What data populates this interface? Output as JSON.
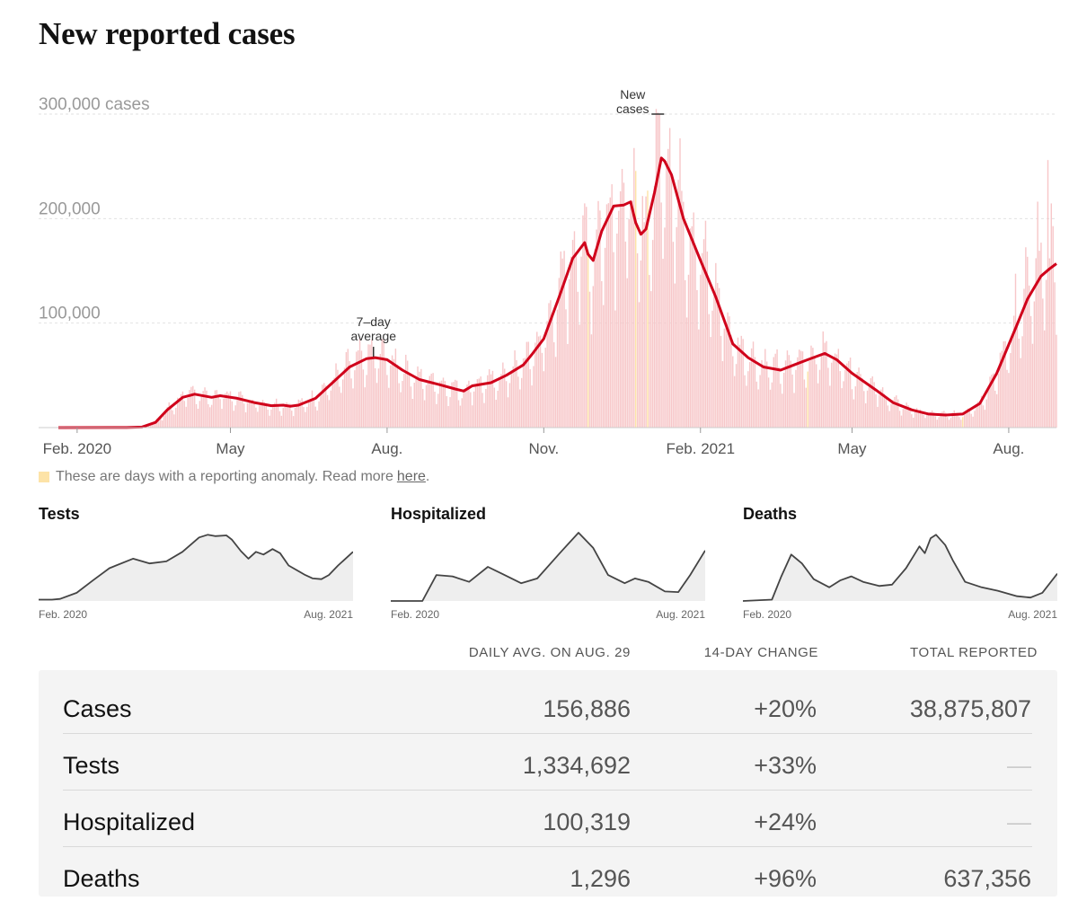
{
  "page": {
    "title": "New reported cases"
  },
  "note": {
    "text": "These are days with a reporting anomaly. Read more",
    "link": "here",
    "end": ".",
    "anomaly_color": "#fde3a7"
  },
  "chart_data": [
    {
      "type": "bar+line",
      "title": "New reported cases",
      "y_unit": "cases",
      "ylim": [
        0,
        300000
      ],
      "y_ticks": [
        100000,
        200000,
        300000
      ],
      "y_tick_labels": [
        "100,000",
        "200,000",
        "300,000 cases"
      ],
      "x_range": [
        "2020-01-21",
        "2021-08-29"
      ],
      "x_ticks": [
        {
          "date": "2020-02-01",
          "label": "Feb. 2020"
        },
        {
          "date": "2020-05-01",
          "label": "May"
        },
        {
          "date": "2020-08-01",
          "label": "Aug."
        },
        {
          "date": "2020-11-01",
          "label": "Nov."
        },
        {
          "date": "2021-02-01",
          "label": "Feb. 2021"
        },
        {
          "date": "2021-05-01",
          "label": "May"
        },
        {
          "date": "2021-08-01",
          "label": "Aug."
        }
      ],
      "annotations": [
        {
          "label": "7–day average",
          "date": "2020-07-24",
          "value": 67000
        },
        {
          "label": "New cases",
          "date": "2021-01-08",
          "value": 300000
        }
      ],
      "series": [
        {
          "name": "7–day average",
          "color": "#d0021b",
          "points": [
            [
              "2020-01-21",
              0
            ],
            [
              "2020-03-01",
              100
            ],
            [
              "2020-03-10",
              500
            ],
            [
              "2020-03-18",
              5000
            ],
            [
              "2020-03-25",
              17000
            ],
            [
              "2020-04-03",
              29000
            ],
            [
              "2020-04-10",
              32000
            ],
            [
              "2020-04-20",
              29000
            ],
            [
              "2020-04-25",
              30500
            ],
            [
              "2020-05-05",
              28000
            ],
            [
              "2020-05-15",
              24000
            ],
            [
              "2020-05-25",
              21000
            ],
            [
              "2020-06-01",
              21500
            ],
            [
              "2020-06-05",
              20500
            ],
            [
              "2020-06-10",
              21500
            ],
            [
              "2020-06-20",
              28000
            ],
            [
              "2020-06-30",
              43000
            ],
            [
              "2020-07-10",
              58000
            ],
            [
              "2020-07-20",
              66000
            ],
            [
              "2020-07-25",
              67000
            ],
            [
              "2020-08-01",
              65000
            ],
            [
              "2020-08-10",
              55000
            ],
            [
              "2020-08-20",
              46000
            ],
            [
              "2020-09-01",
              41000
            ],
            [
              "2020-09-10",
              37000
            ],
            [
              "2020-09-15",
              35000
            ],
            [
              "2020-09-20",
              40000
            ],
            [
              "2020-10-01",
              43000
            ],
            [
              "2020-10-10",
              50000
            ],
            [
              "2020-10-20",
              60000
            ],
            [
              "2020-10-25",
              70000
            ],
            [
              "2020-11-01",
              85000
            ],
            [
              "2020-11-10",
              125000
            ],
            [
              "2020-11-18",
              162000
            ],
            [
              "2020-11-25",
              177000
            ],
            [
              "2020-11-27",
              166000
            ],
            [
              "2020-11-30",
              160000
            ],
            [
              "2020-12-05",
              188000
            ],
            [
              "2020-12-12",
              212000
            ],
            [
              "2020-12-18",
              213000
            ],
            [
              "2020-12-22",
              216000
            ],
            [
              "2020-12-25",
              196000
            ],
            [
              "2020-12-28",
              185000
            ],
            [
              "2020-12-31",
              190000
            ],
            [
              "2021-01-05",
              225000
            ],
            [
              "2021-01-09",
              258000
            ],
            [
              "2021-01-11",
              255000
            ],
            [
              "2021-01-15",
              242000
            ],
            [
              "2021-01-22",
              200000
            ],
            [
              "2021-02-01",
              160000
            ],
            [
              "2021-02-10",
              125000
            ],
            [
              "2021-02-20",
              80000
            ],
            [
              "2021-03-01",
              67000
            ],
            [
              "2021-03-10",
              58000
            ],
            [
              "2021-03-20",
              55000
            ],
            [
              "2021-03-28",
              60000
            ],
            [
              "2021-04-05",
              65000
            ],
            [
              "2021-04-15",
              71000
            ],
            [
              "2021-04-22",
              65000
            ],
            [
              "2021-05-01",
              52000
            ],
            [
              "2021-05-15",
              36000
            ],
            [
              "2021-05-25",
              24000
            ],
            [
              "2021-06-05",
              17000
            ],
            [
              "2021-06-15",
              13000
            ],
            [
              "2021-06-25",
              12000
            ],
            [
              "2021-07-05",
              13000
            ],
            [
              "2021-07-15",
              23000
            ],
            [
              "2021-07-25",
              52000
            ],
            [
              "2021-08-05",
              95000
            ],
            [
              "2021-08-12",
              123000
            ],
            [
              "2021-08-20",
              145000
            ],
            [
              "2021-08-25",
              152000
            ],
            [
              "2021-08-29",
              156886
            ]
          ]
        }
      ],
      "bar_series": {
        "name": "New cases",
        "bar_color": "#f7c7c9",
        "anomaly_color": "#fde3a7",
        "daily_values": "daily bars scattered around the 7–day average (weekday highs, weekend lows), late-August 2021 spikes near 265,000"
      }
    },
    {
      "type": "area",
      "title": "Tests",
      "x_labels": [
        "Feb. 2020",
        "Aug. 2021"
      ],
      "points": [
        [
          "2020-01-21",
          0.02
        ],
        [
          "2020-02-15",
          0.02
        ],
        [
          "2020-03-01",
          0.03
        ],
        [
          "2020-04-01",
          0.12
        ],
        [
          "2020-05-01",
          0.3
        ],
        [
          "2020-06-01",
          0.48
        ],
        [
          "2020-07-15",
          0.62
        ],
        [
          "2020-08-15",
          0.55
        ],
        [
          "2020-09-15",
          0.58
        ],
        [
          "2020-10-15",
          0.72
        ],
        [
          "2020-11-15",
          0.93
        ],
        [
          "2020-12-01",
          0.97
        ],
        [
          "2020-12-15",
          0.95
        ],
        [
          "2021-01-05",
          0.96
        ],
        [
          "2021-01-15",
          0.9
        ],
        [
          "2021-02-01",
          0.73
        ],
        [
          "2021-02-15",
          0.62
        ],
        [
          "2021-03-01",
          0.72
        ],
        [
          "2021-03-15",
          0.68
        ],
        [
          "2021-04-01",
          0.76
        ],
        [
          "2021-04-15",
          0.7
        ],
        [
          "2021-05-01",
          0.52
        ],
        [
          "2021-06-01",
          0.38
        ],
        [
          "2021-06-15",
          0.33
        ],
        [
          "2021-07-01",
          0.32
        ],
        [
          "2021-07-15",
          0.38
        ],
        [
          "2021-08-01",
          0.52
        ],
        [
          "2021-08-29",
          0.72
        ]
      ]
    },
    {
      "type": "area",
      "title": "Hospitalized",
      "x_labels": [
        "Feb. 2020",
        "Aug. 2021"
      ],
      "points": [
        [
          "2020-01-21",
          0.0
        ],
        [
          "2020-03-20",
          0.0
        ],
        [
          "2020-04-15",
          0.38
        ],
        [
          "2020-05-15",
          0.36
        ],
        [
          "2020-06-15",
          0.28
        ],
        [
          "2020-07-20",
          0.5
        ],
        [
          "2020-08-15",
          0.4
        ],
        [
          "2020-09-20",
          0.26
        ],
        [
          "2020-10-20",
          0.33
        ],
        [
          "2020-12-01",
          0.7
        ],
        [
          "2021-01-05",
          1.0
        ],
        [
          "2021-02-01",
          0.78
        ],
        [
          "2021-03-01",
          0.38
        ],
        [
          "2021-04-01",
          0.26
        ],
        [
          "2021-04-20",
          0.33
        ],
        [
          "2021-05-15",
          0.28
        ],
        [
          "2021-06-15",
          0.14
        ],
        [
          "2021-07-10",
          0.13
        ],
        [
          "2021-08-01",
          0.38
        ],
        [
          "2021-08-29",
          0.74
        ]
      ]
    },
    {
      "type": "area",
      "title": "Deaths",
      "x_labels": [
        "Feb. 2020",
        "Aug. 2021"
      ],
      "points": [
        [
          "2020-01-21",
          0.0
        ],
        [
          "2020-03-15",
          0.02
        ],
        [
          "2020-04-01",
          0.35
        ],
        [
          "2020-04-20",
          0.68
        ],
        [
          "2020-05-10",
          0.55
        ],
        [
          "2020-06-01",
          0.32
        ],
        [
          "2020-06-30",
          0.2
        ],
        [
          "2020-07-20",
          0.3
        ],
        [
          "2020-08-10",
          0.36
        ],
        [
          "2020-09-01",
          0.28
        ],
        [
          "2020-10-01",
          0.22
        ],
        [
          "2020-10-25",
          0.24
        ],
        [
          "2020-11-20",
          0.48
        ],
        [
          "2020-12-15",
          0.8
        ],
        [
          "2020-12-25",
          0.7
        ],
        [
          "2021-01-05",
          0.92
        ],
        [
          "2021-01-15",
          0.97
        ],
        [
          "2021-02-01",
          0.82
        ],
        [
          "2021-02-15",
          0.6
        ],
        [
          "2021-03-10",
          0.28
        ],
        [
          "2021-04-10",
          0.2
        ],
        [
          "2021-05-10",
          0.15
        ],
        [
          "2021-06-15",
          0.07
        ],
        [
          "2021-07-10",
          0.05
        ],
        [
          "2021-08-01",
          0.12
        ],
        [
          "2021-08-29",
          0.4
        ]
      ]
    }
  ],
  "table": {
    "headers": [
      "DAILY AVG. ON AUG. 29",
      "14-DAY CHANGE",
      "TOTAL REPORTED"
    ],
    "rows": [
      {
        "name": "Cases",
        "avg": "156,886",
        "change": "+20%",
        "total": "38,875,807"
      },
      {
        "name": "Tests",
        "avg": "1,334,692",
        "change": "+33%",
        "total": "—"
      },
      {
        "name": "Hospitalized",
        "avg": "100,319",
        "change": "+24%",
        "total": "—"
      },
      {
        "name": "Deaths",
        "avg": "1,296",
        "change": "+96%",
        "total": "637,356"
      }
    ]
  }
}
